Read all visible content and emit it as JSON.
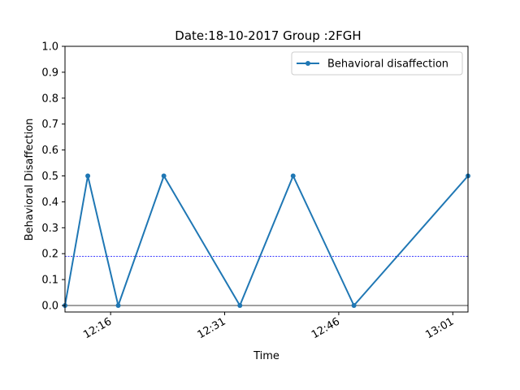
{
  "chart_data": {
    "type": "line",
    "title": "Date:18-10-2017 Group :2FGH",
    "xlabel": "Time",
    "ylabel": "Behavioral Disaffection",
    "x_ticks": [
      "12:16",
      "12:31",
      "12:46",
      "13:01"
    ],
    "y_ticks": [
      "0.0",
      "0.1",
      "0.2",
      "0.3",
      "0.4",
      "0.5",
      "0.6",
      "0.7",
      "0.8",
      "0.9",
      "1.0"
    ],
    "xlim": [
      "12:10",
      "13:03"
    ],
    "ylim": [
      0,
      1.0
    ],
    "series": [
      {
        "name": "Behavioral disaffection",
        "color": "#1f77b4",
        "marker": "circle",
        "points": [
          {
            "x": "12:10",
            "y": 0.0
          },
          {
            "x": "12:13",
            "y": 0.5
          },
          {
            "x": "12:17",
            "y": 0.0
          },
          {
            "x": "12:23",
            "y": 0.5
          },
          {
            "x": "12:33",
            "y": 0.0
          },
          {
            "x": "12:40",
            "y": 0.5
          },
          {
            "x": "12:48",
            "y": 0.0
          },
          {
            "x": "13:03",
            "y": 0.5
          }
        ]
      }
    ],
    "reference_lines": [
      {
        "y": 0.19,
        "color": "#0000ff",
        "style": "dashed"
      },
      {
        "y": 0.0,
        "color": "#000000",
        "style": "solid"
      }
    ],
    "legend_position": "upper-right",
    "grid": false
  }
}
